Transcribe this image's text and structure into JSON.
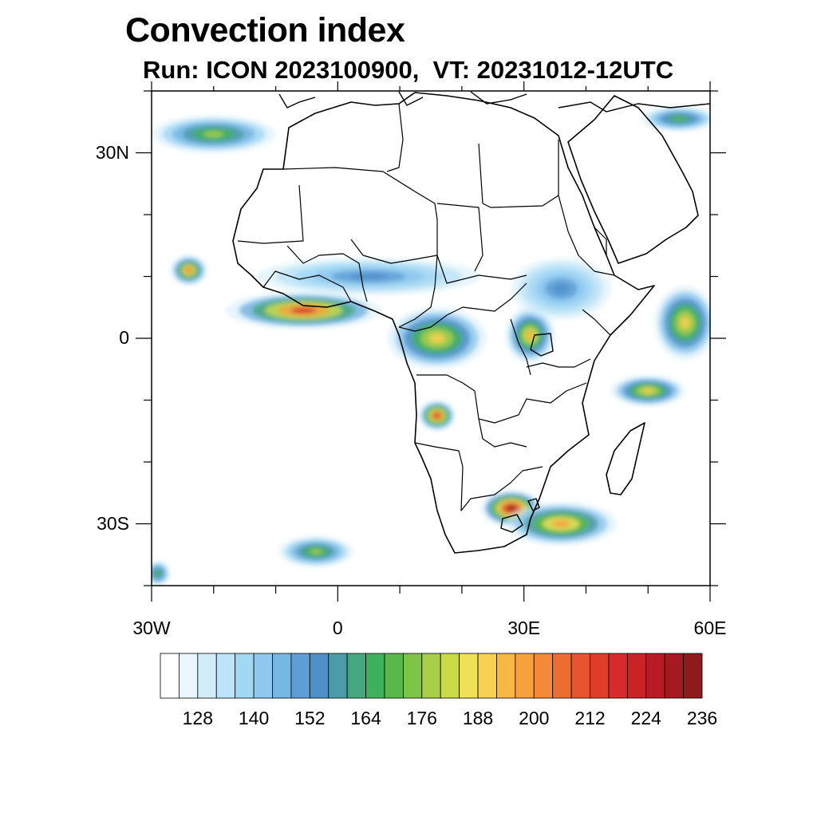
{
  "title": "Convection index",
  "subtitle": "Run: ICON 2023100900,  VT: 20231012-12UTC",
  "map": {
    "region": "Africa",
    "lon_range": [
      -30,
      60
    ],
    "lat_range": [
      -40,
      40
    ],
    "lat_labels": [
      "30N",
      "0",
      "30S"
    ],
    "lat_values": [
      30,
      0,
      -30
    ],
    "lon_labels": [
      "30W",
      "0",
      "30E",
      "60E"
    ],
    "lon_values": [
      -30,
      0,
      30,
      60
    ],
    "convection_areas": [
      {
        "name": "West African coast band",
        "lon": -5.5,
        "lat": 4.5,
        "rx": 12.5,
        "ry": 3.0,
        "peak": 212
      },
      {
        "name": "Sahel band",
        "lon": 5.0,
        "lat": 10.0,
        "rx": 18.0,
        "ry": 3.0,
        "peak": 150
      },
      {
        "name": "Cabo Verde cell",
        "lon": -24.0,
        "lat": 11.0,
        "rx": 3.0,
        "ry": 2.5,
        "peak": 200
      },
      {
        "name": "Congo basin",
        "lon": 16.0,
        "lat": 0.0,
        "rx": 8.0,
        "ry": 5.0,
        "peak": 185
      },
      {
        "name": "Lake Victoria",
        "lon": 31.0,
        "lat": 0.5,
        "rx": 4.0,
        "ry": 4.5,
        "peak": 190
      },
      {
        "name": "Angola cells",
        "lon": 16.0,
        "lat": -12.5,
        "rx": 3.0,
        "ry": 2.5,
        "peak": 215
      },
      {
        "name": "Ethiopian highlands",
        "lon": 36.0,
        "lat": 8.0,
        "rx": 8.0,
        "ry": 5.0,
        "peak": 150
      },
      {
        "name": "Somali ocean band",
        "lon": 56.0,
        "lat": 2.5,
        "rx": 5.0,
        "ry": 6.0,
        "peak": 185
      },
      {
        "name": "Seychelles band",
        "lon": 50.0,
        "lat": -8.5,
        "rx": 6.0,
        "ry": 2.5,
        "peak": 185
      },
      {
        "name": "Southern Africa front",
        "lon": 28.0,
        "lat": -27.5,
        "rx": 5.0,
        "ry": 3.0,
        "peak": 228
      },
      {
        "name": "Natal offshore band",
        "lon": 36.0,
        "lat": -30.0,
        "rx": 9.0,
        "ry": 3.5,
        "peak": 195
      },
      {
        "name": "South Atlantic band",
        "lon": -3.5,
        "lat": -34.5,
        "rx": 6.0,
        "ry": 2.5,
        "peak": 172
      },
      {
        "name": "Northwest Atlantic band",
        "lon": -20.0,
        "lat": 33.0,
        "rx": 10.0,
        "ry": 3.0,
        "peak": 172
      },
      {
        "name": "Arabian Sea northeast",
        "lon": 55.0,
        "lat": 35.5,
        "rx": 6.0,
        "ry": 2.0,
        "peak": 165
      },
      {
        "name": "Far southwest band",
        "lon": -29.0,
        "lat": -38.0,
        "rx": 2.0,
        "ry": 2.0,
        "peak": 165
      }
    ]
  },
  "colorbar": {
    "label_values": [
      128,
      140,
      152,
      164,
      176,
      188,
      200,
      212,
      224,
      236
    ],
    "labels": [
      "128",
      "140",
      "152",
      "164",
      "176",
      "188",
      "200",
      "212",
      "224",
      "236"
    ],
    "levels": [
      116,
      120,
      124,
      128,
      132,
      136,
      140,
      144,
      148,
      152,
      156,
      160,
      164,
      168,
      172,
      176,
      180,
      184,
      188,
      192,
      196,
      200,
      204,
      208,
      212,
      216,
      220,
      224,
      228,
      232,
      236,
      240
    ],
    "colors": [
      "#ffffff",
      "#eaf6fd",
      "#d2ecfa",
      "#bde4f8",
      "#a3d8f4",
      "#8ec8ee",
      "#76b6e4",
      "#5e9dd6",
      "#4f90c8",
      "#4b9aa7",
      "#46a87e",
      "#3fb05b",
      "#58b948",
      "#7ec448",
      "#a7cf49",
      "#cadb48",
      "#eee157",
      "#f8d052",
      "#f8b846",
      "#f6a03e",
      "#f28a38",
      "#ec6d31",
      "#e6552d",
      "#e03d2b",
      "#d72a2a",
      "#c92227",
      "#b81b24",
      "#a61920",
      "#8e1b1c"
    ]
  }
}
